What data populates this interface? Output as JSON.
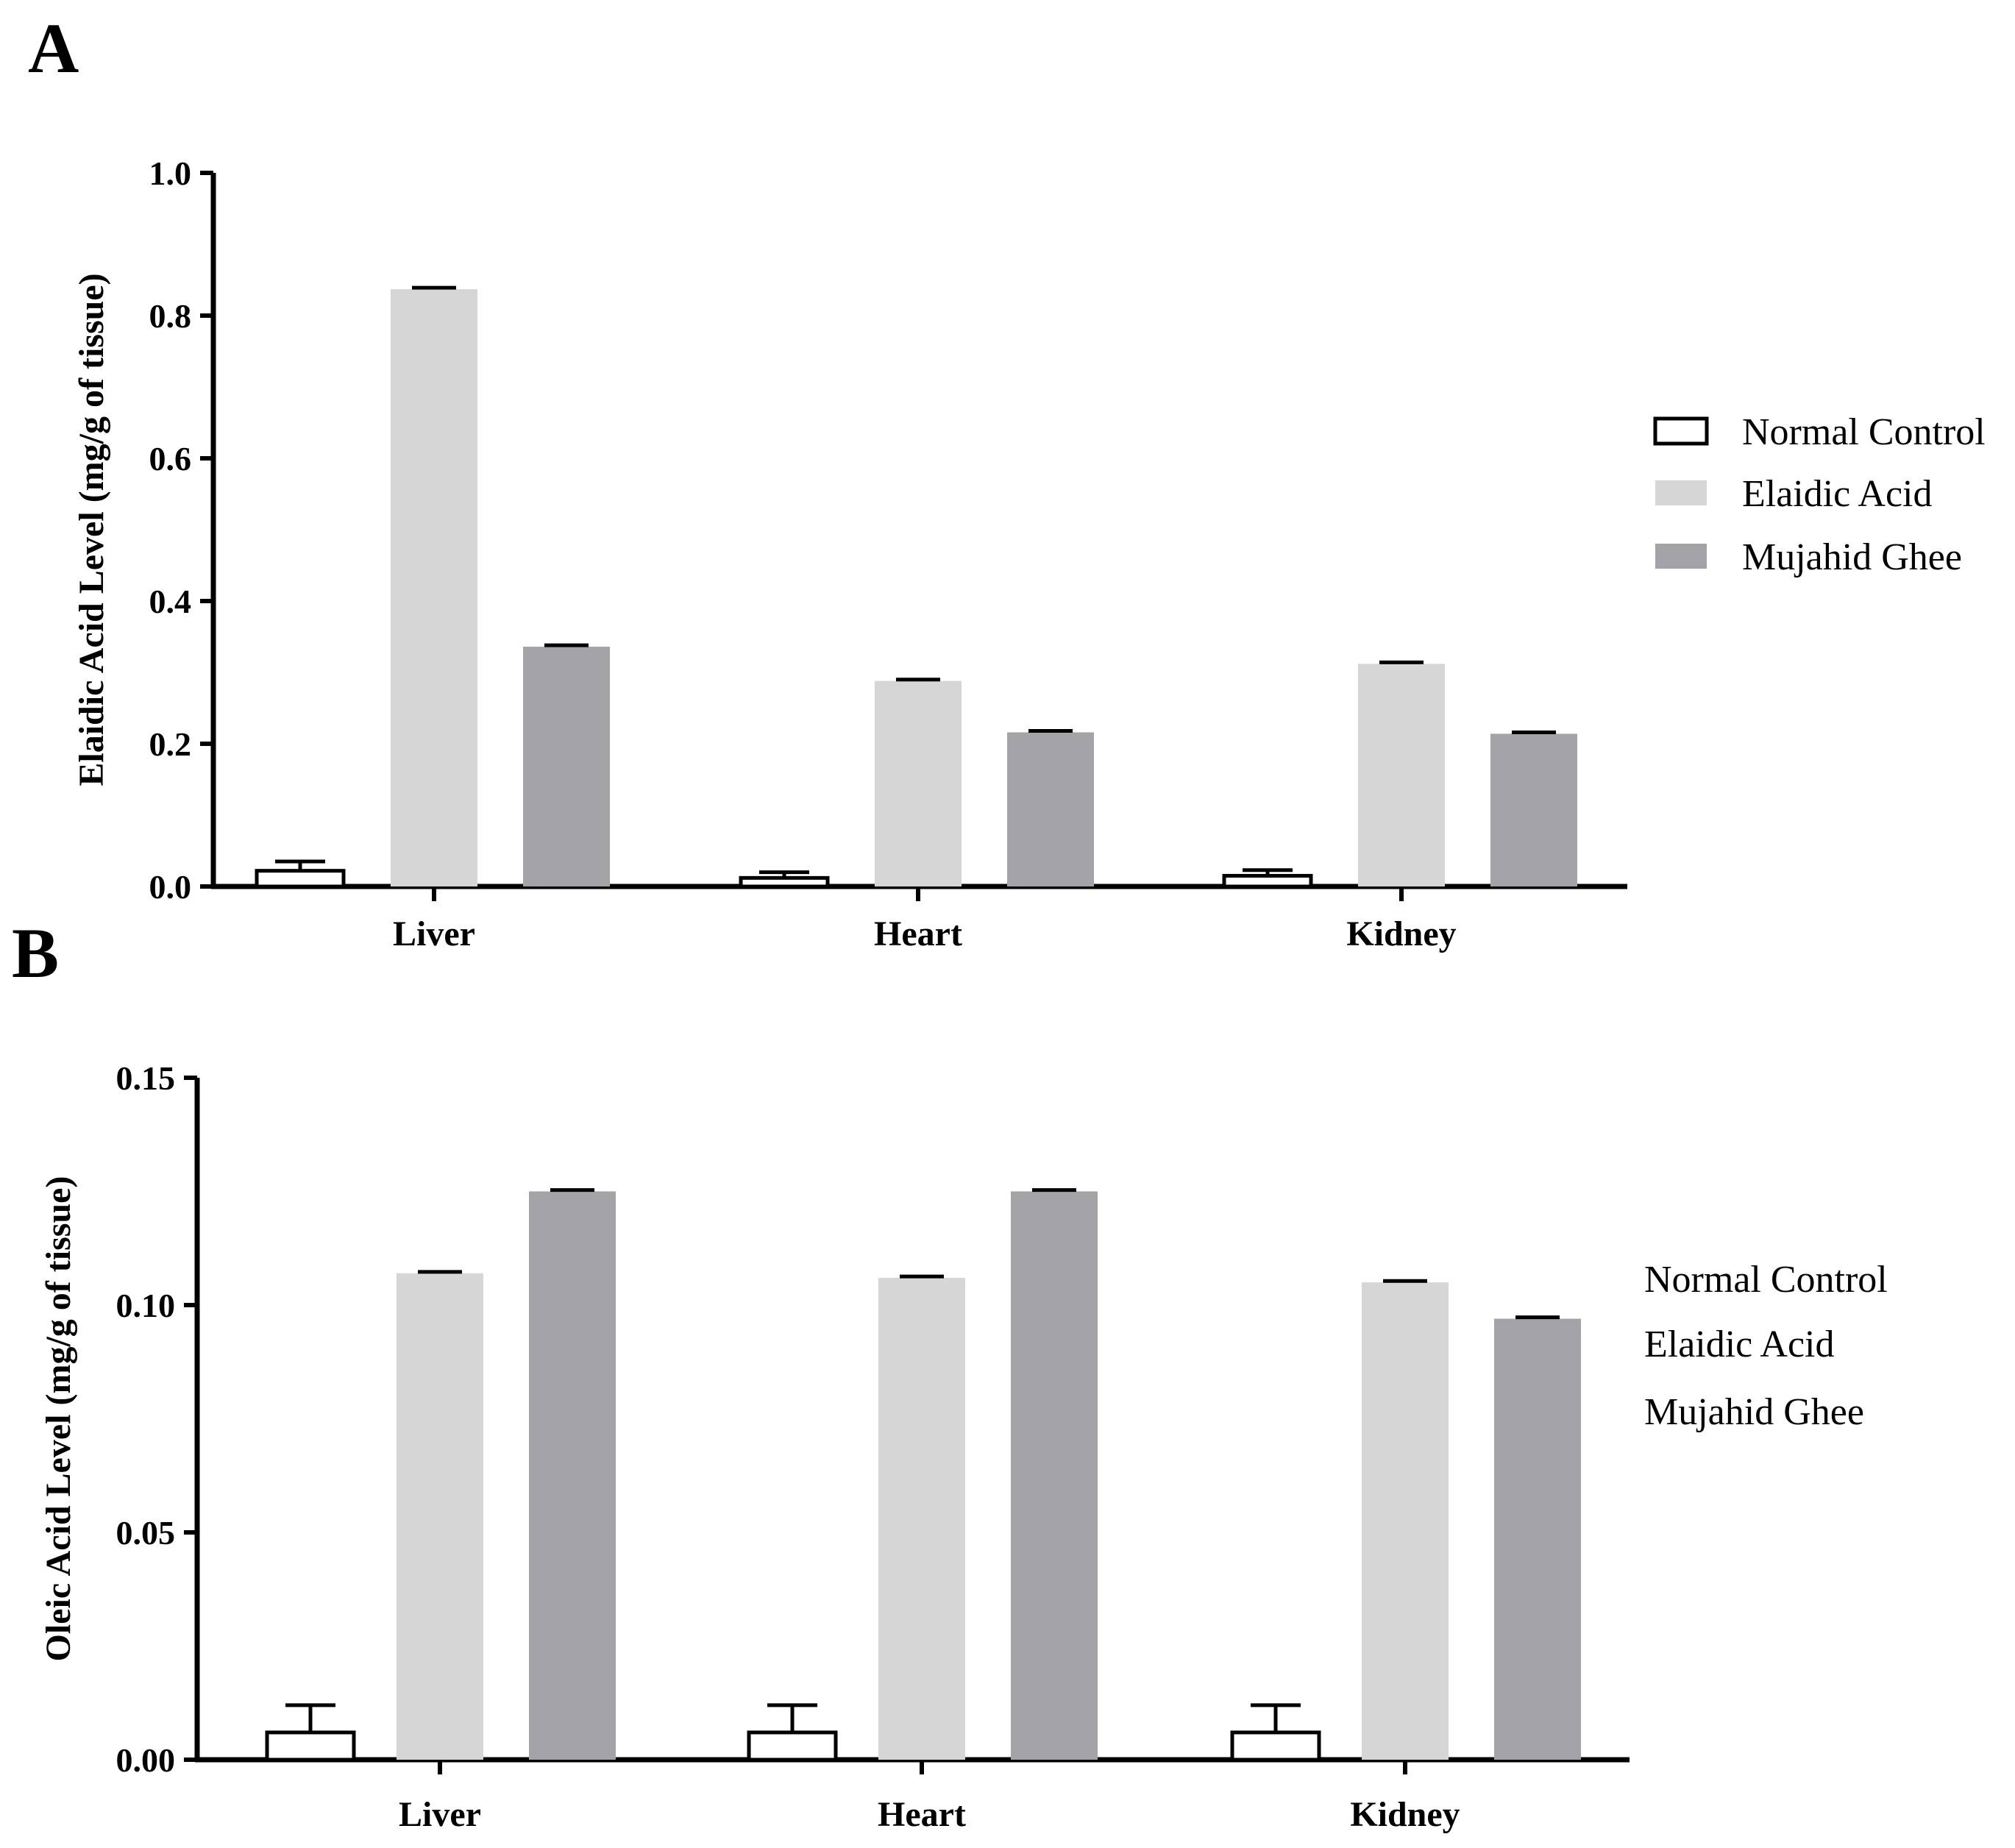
{
  "chart_data": [
    {
      "type": "bar",
      "panel": "A",
      "title": "",
      "xlabel": "",
      "ylabel": "Elaidic Acid Level (mg/g of tissue)",
      "ylim": [
        0,
        1.0
      ],
      "yticks": [
        0.0,
        0.2,
        0.4,
        0.6,
        0.8,
        1.0
      ],
      "ytick_labels": [
        "0.0",
        "0.2",
        "0.4",
        "0.6",
        "0.8",
        "1.0"
      ],
      "categories": [
        "Liver",
        "Heart",
        "Kidney"
      ],
      "series": [
        {
          "name": "Normal Control",
          "color": "#ffffff",
          "values": [
            0.022,
            0.012,
            0.015
          ],
          "errors": [
            0.013,
            0.008,
            0.008
          ]
        },
        {
          "name": "Elaidic Acid",
          "color": "#d6d6d6",
          "values": [
            0.837,
            0.288,
            0.312
          ],
          "errors": [
            0.002,
            0.002,
            0.002
          ]
        },
        {
          "name": "Mujahid Ghee",
          "color": "#a3a3a8",
          "values": [
            0.336,
            0.216,
            0.214
          ],
          "errors": [
            0.002,
            0.002,
            0.002
          ]
        }
      ],
      "legend": {
        "placement": "right",
        "show_swatches": true
      }
    },
    {
      "type": "bar",
      "panel": "B",
      "title": "",
      "xlabel": "",
      "ylabel": "Oleic Acid Level (mg/g of tissue)",
      "ylim": [
        0,
        0.15
      ],
      "yticks": [
        0.0,
        0.05,
        0.1,
        0.15
      ],
      "ytick_labels": [
        "0.00",
        "0.05",
        "0.10",
        "0.15"
      ],
      "categories": [
        "Liver",
        "Heart",
        "Kidney"
      ],
      "series": [
        {
          "name": "Normal Control",
          "color": "#ffffff",
          "values": [
            0.006,
            0.006,
            0.006
          ],
          "errors": [
            0.006,
            0.006,
            0.006
          ]
        },
        {
          "name": "Elaidic Acid",
          "color": "#d6d6d6",
          "values": [
            0.107,
            0.106,
            0.105
          ],
          "errors": [
            0.0003,
            0.0003,
            0.0003
          ]
        },
        {
          "name": "Mujahid Ghee",
          "color": "#a3a3a8",
          "values": [
            0.125,
            0.125,
            0.097
          ],
          "errors": [
            0.0003,
            0.0003,
            0.0003
          ]
        }
      ],
      "legend": {
        "placement": "right",
        "show_swatches": false
      }
    }
  ]
}
